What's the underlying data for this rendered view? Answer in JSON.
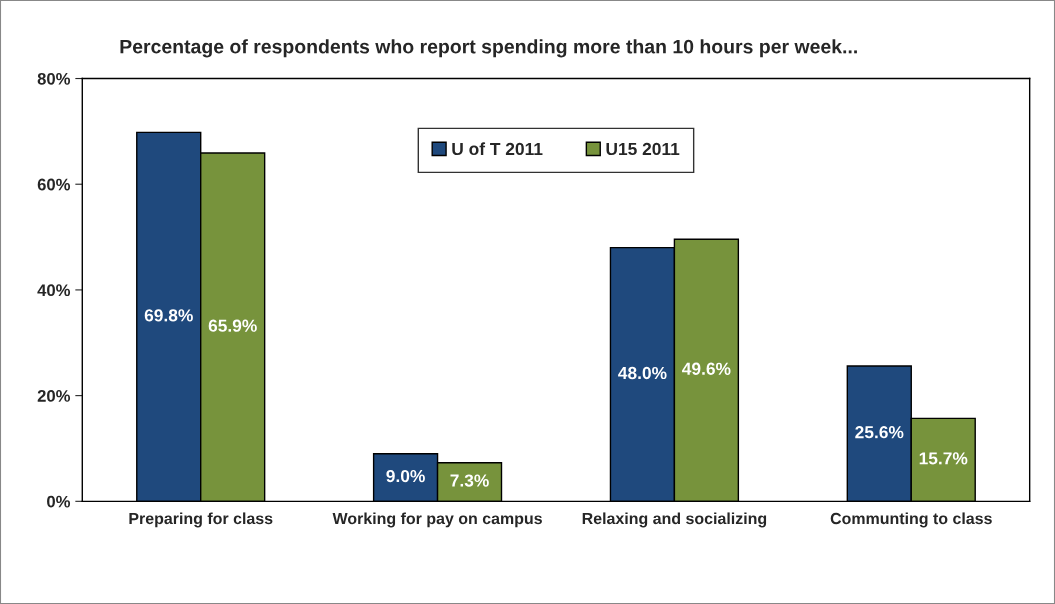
{
  "chart_data": {
    "type": "bar",
    "title": "Percentage of respondents who report spending more than 10 hours per week...",
    "categories": [
      "Preparing for class",
      "Working for pay on campus",
      "Relaxing and socializing",
      "Communting to class"
    ],
    "series": [
      {
        "name": "U of T 2011",
        "color": "#1f497d",
        "values": [
          69.8,
          9.0,
          48.0,
          25.6
        ],
        "value_labels": [
          "69.8%",
          "9.0%",
          "48.0%",
          "25.6%"
        ]
      },
      {
        "name": "U15 2011",
        "color": "#77933c",
        "values": [
          65.9,
          7.3,
          49.6,
          15.7
        ],
        "value_labels": [
          "65.9%",
          "7.3%",
          "49.6%",
          "15.7%"
        ]
      }
    ],
    "ylim": [
      0,
      80
    ],
    "yticks": [
      {
        "value": 0,
        "label": "0%"
      },
      {
        "value": 20,
        "label": "20%"
      },
      {
        "value": 40,
        "label": "40%"
      },
      {
        "value": 60,
        "label": "60%"
      },
      {
        "value": 80,
        "label": "80%"
      }
    ],
    "grid": false,
    "legend": "top"
  }
}
